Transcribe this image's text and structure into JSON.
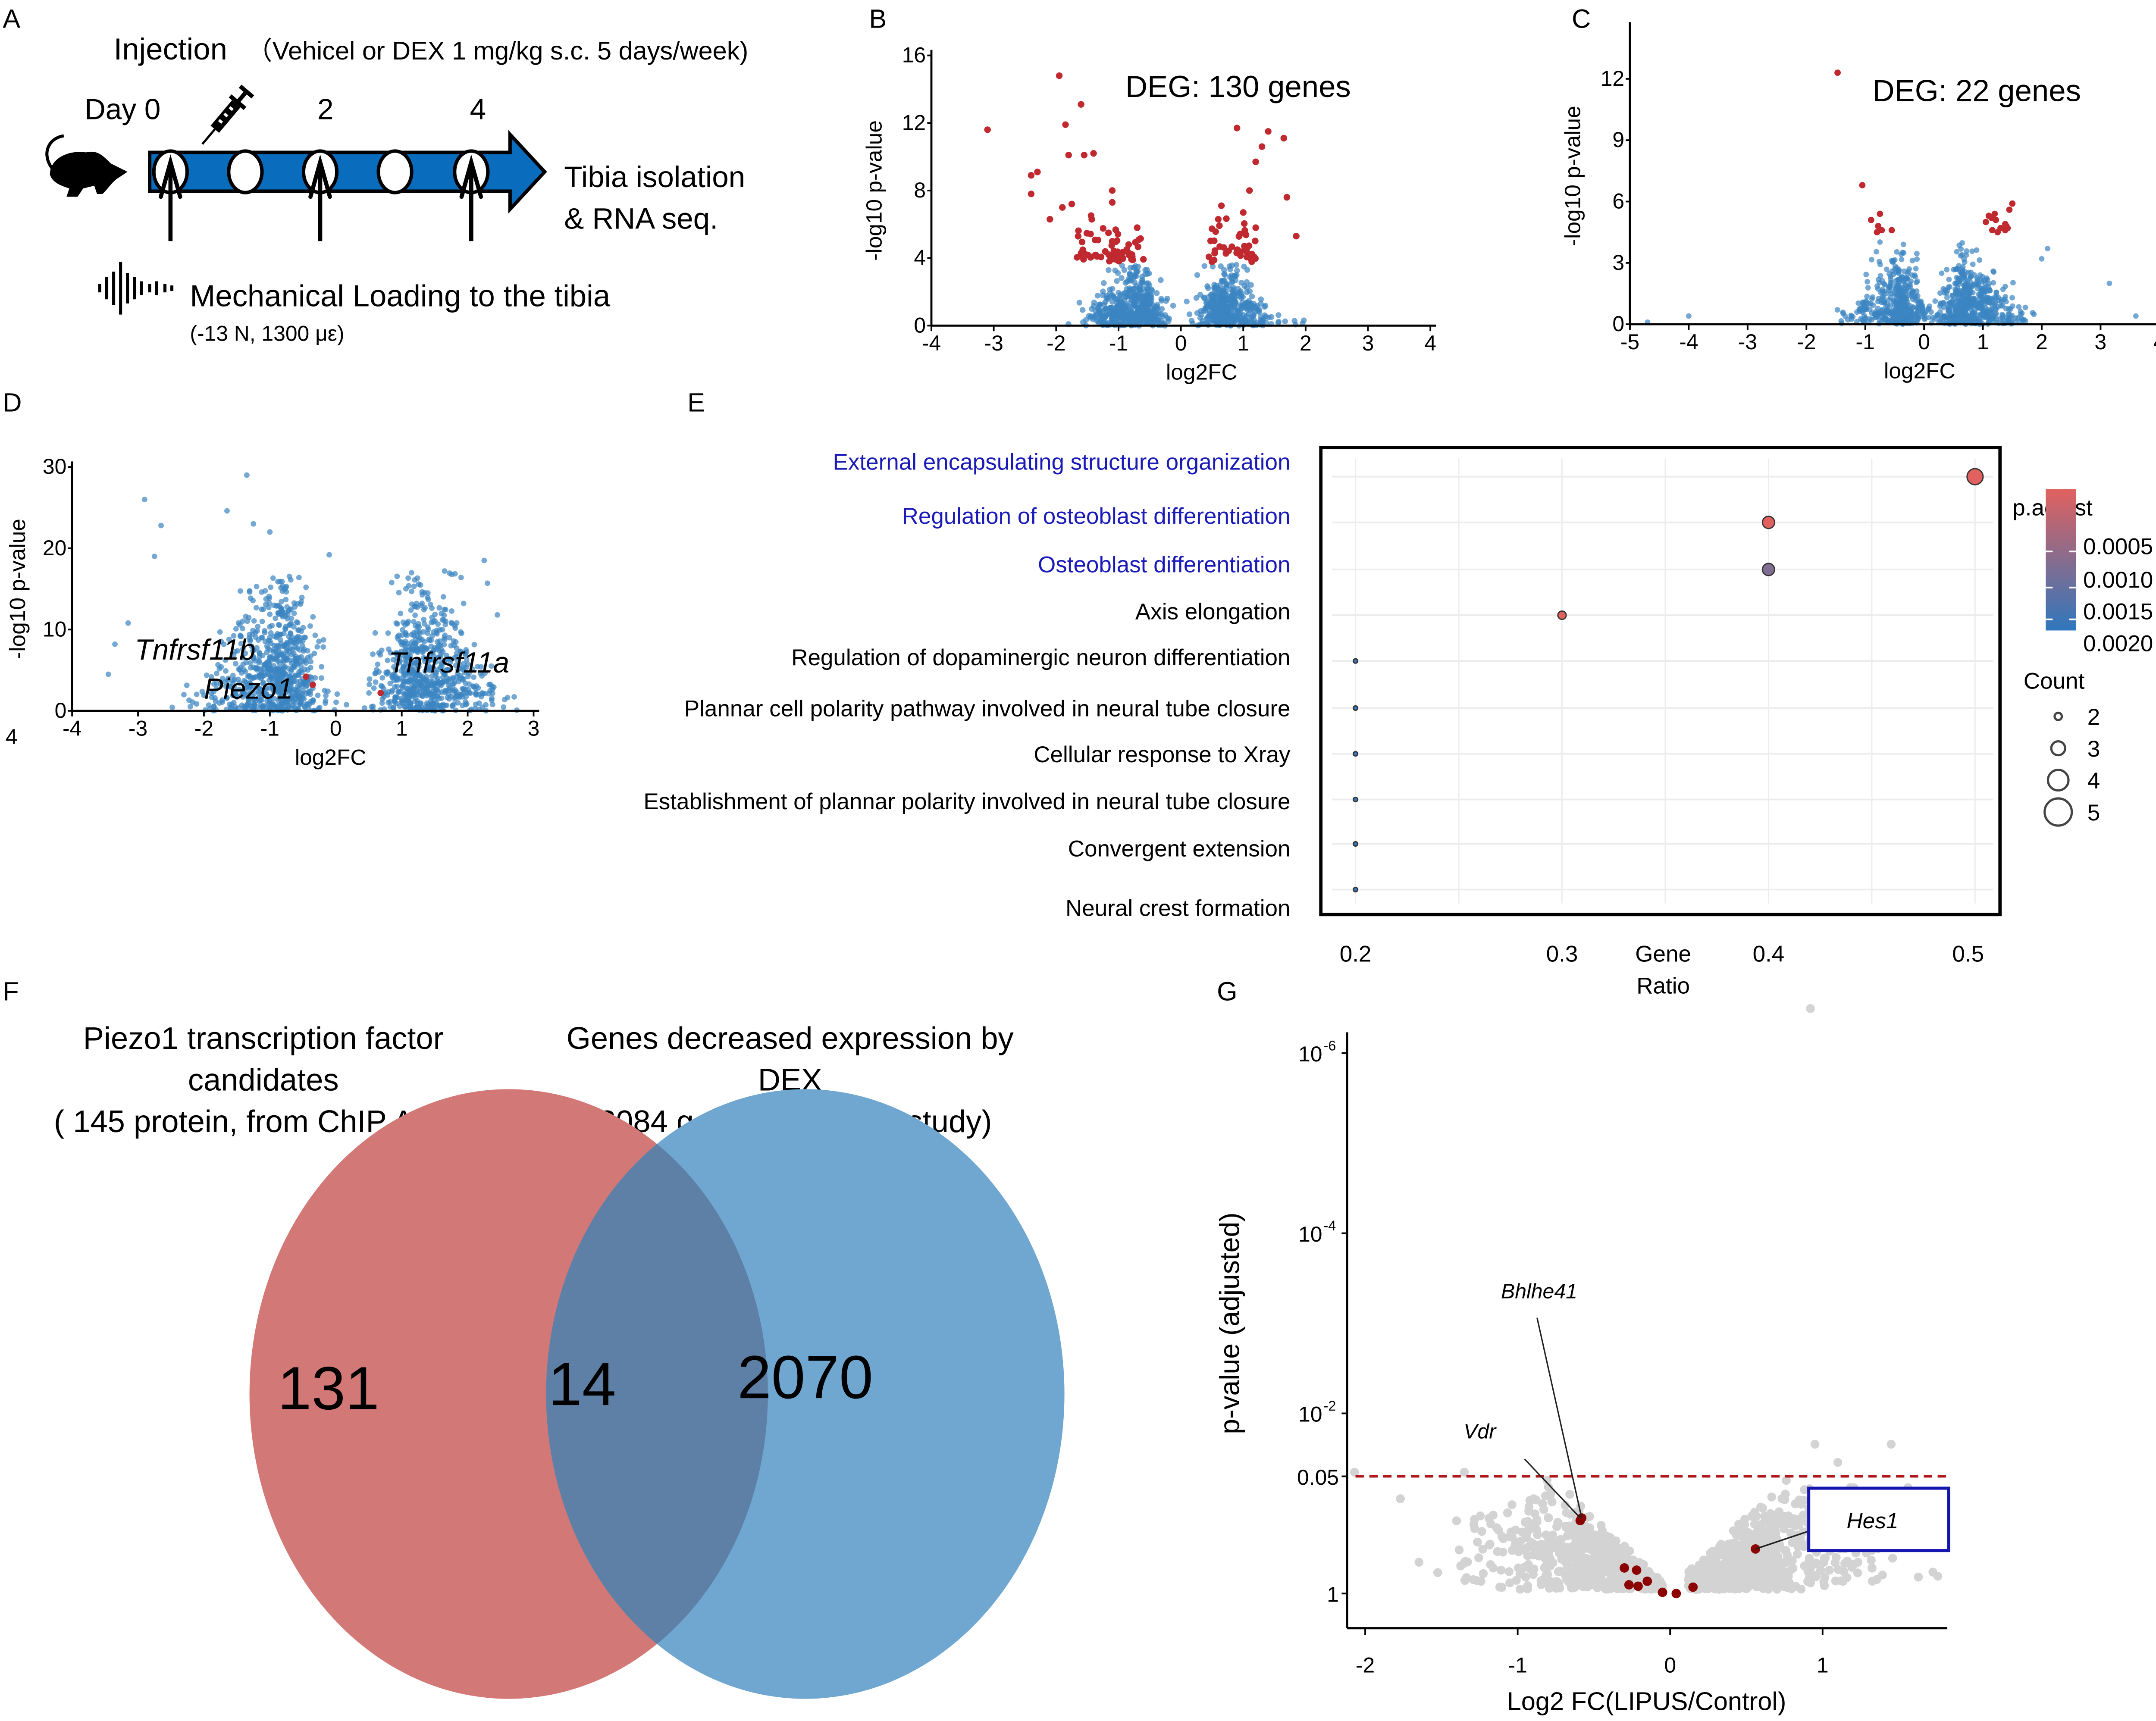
{
  "figure": {
    "panel_labels": [
      "A",
      "B",
      "C",
      "D",
      "E",
      "F",
      "G"
    ]
  },
  "panel_a": {
    "injection_title": "Injection",
    "injection_detail": "（Vehicel or DEX 1 mg/kg s.c. 5 days/week)",
    "day_labels": [
      "Day 0",
      "2",
      "4"
    ],
    "outcome_line1": "Tibia isolation",
    "outcome_line2": "& RNA seq.",
    "loading_title": "Mechanical Loading to the tibia",
    "loading_detail": "(-13 N, 1300 με)",
    "icons": [
      "mouse-icon",
      "syringe-icon",
      "sound-wave-icon"
    ],
    "timeline_color": "#0a6cbd",
    "timepoints": 5,
    "loading_timepoints": [
      0,
      2,
      4
    ]
  },
  "chart_data": [
    {
      "id": "B",
      "type": "scatter",
      "title": "",
      "annotation": "DEG: 130 genes",
      "xlabel": "log2FC",
      "ylabel": "-log10 p-value",
      "xlim": [
        -4,
        4.3
      ],
      "ylim": [
        0,
        16.5
      ],
      "xticks": [
        -4,
        -3,
        -2,
        -1,
        0,
        1,
        2,
        3,
        4
      ],
      "yticks": [
        0,
        4,
        8,
        12,
        16
      ],
      "colors": {
        "significant": "#c0292f",
        "non_significant": "#3a85c2"
      },
      "deg_count": 130,
      "significance_threshold_neglog10p": 3.7,
      "highlighted_points": [
        [
          -3.1,
          11.6
        ],
        [
          -1.95,
          14.8
        ],
        [
          -1.6,
          13.1
        ],
        [
          -1.85,
          11.9
        ],
        [
          -1.8,
          10.1
        ],
        [
          -1.55,
          10.1
        ],
        [
          -1.4,
          10.2
        ],
        [
          -2.4,
          8.9
        ],
        [
          -2.3,
          9.1
        ],
        [
          -2.4,
          7.8
        ],
        [
          -1.1,
          8.0
        ],
        [
          -1.1,
          7.3
        ],
        [
          -1.9,
          7.0
        ],
        [
          -1.75,
          7.2
        ],
        [
          -2.1,
          6.3
        ],
        [
          -0.7,
          5.8
        ],
        [
          0.9,
          11.7
        ],
        [
          1.4,
          11.5
        ],
        [
          1.65,
          11.1
        ],
        [
          1.3,
          10.6
        ],
        [
          1.2,
          9.7
        ],
        [
          1.1,
          8.0
        ],
        [
          1.7,
          7.6
        ],
        [
          0.65,
          7.1
        ],
        [
          1.0,
          6.7
        ],
        [
          0.6,
          6.3
        ],
        [
          1.85,
          5.3
        ],
        [
          1.2,
          5.8
        ]
      ]
    },
    {
      "id": "C",
      "type": "scatter",
      "annotation": "DEG: 22 genes",
      "xlabel": "log2FC",
      "ylabel": "-log10 p-value",
      "xlim": [
        -5,
        4.2
      ],
      "ylim": [
        0,
        14.5
      ],
      "xticks": [
        -5,
        -4,
        -3,
        -2,
        -1,
        0,
        1,
        2,
        3,
        4
      ],
      "yticks": [
        0,
        3,
        6,
        9,
        12
      ],
      "colors": {
        "significant": "#c0292f",
        "non_significant": "#3a85c2"
      },
      "deg_count": 22,
      "highlighted_points": [
        [
          -1.47,
          12.3
        ],
        [
          -1.05,
          6.8
        ],
        [
          -0.9,
          5.1
        ],
        [
          -0.75,
          5.4
        ],
        [
          -0.78,
          4.8
        ],
        [
          -0.72,
          4.6
        ],
        [
          -0.55,
          4.6
        ],
        [
          1.05,
          5.0
        ],
        [
          1.15,
          5.2
        ],
        [
          1.2,
          5.4
        ],
        [
          1.22,
          5.1
        ],
        [
          1.16,
          4.6
        ],
        [
          1.25,
          4.5
        ],
        [
          1.38,
          4.9
        ],
        [
          1.42,
          4.7
        ],
        [
          1.38,
          4.6
        ],
        [
          1.45,
          5.6
        ],
        [
          1.5,
          5.9
        ],
        [
          1.4,
          4.8
        ],
        [
          1.1,
          5.3
        ],
        [
          -0.8,
          4.5
        ],
        [
          1.3,
          4.7
        ]
      ],
      "outlier_points": [
        [
          -4.7,
          0.1
        ],
        [
          -4.0,
          0.4
        ],
        [
          3.15,
          2.0
        ],
        [
          3.6,
          0.4
        ],
        [
          2.1,
          3.7
        ],
        [
          2.0,
          3.2
        ]
      ]
    },
    {
      "id": "D",
      "type": "scatter",
      "xlabel": "log2FC",
      "ylabel": "-log10 p-value",
      "xlim": [
        -4,
        3.3
      ],
      "ylim": [
        0,
        31
      ],
      "xticks": [
        -4,
        -3,
        -2,
        -1,
        0,
        1,
        2,
        3
      ],
      "yticks": [
        0,
        10,
        20,
        30
      ],
      "stray_tick_label": "4",
      "colors": {
        "highlight": "#c0292f",
        "points": "#3a85c2"
      },
      "gene_labels": [
        {
          "text": "Tnfrsf11b",
          "x": -3.05,
          "y": 6.3
        },
        {
          "text": "Piezo1",
          "x": -2.0,
          "y": 1.5
        },
        {
          "text": "Tnfrsf11a",
          "x": 0.8,
          "y": 4.7
        }
      ],
      "highlighted_points": [
        [
          -0.45,
          4.2
        ],
        [
          -0.35,
          3.2
        ],
        [
          0.68,
          2.2
        ]
      ],
      "outlier_points": [
        [
          -1.35,
          29
        ],
        [
          -2.9,
          26
        ],
        [
          -1.65,
          24.6
        ],
        [
          -2.65,
          22.8
        ],
        [
          -1.25,
          23
        ],
        [
          -1.0,
          22
        ],
        [
          -0.1,
          19.2
        ],
        [
          2.25,
          18.5
        ],
        [
          -2.75,
          19
        ],
        [
          1.65,
          17.2
        ],
        [
          1.9,
          16.4
        ],
        [
          2.3,
          15.7
        ],
        [
          2.45,
          11.8
        ],
        [
          -3.15,
          10.8
        ],
        [
          -3.35,
          8.2
        ],
        [
          -3.45,
          4.5
        ]
      ]
    },
    {
      "id": "E",
      "type": "scatter",
      "title": "",
      "xlabel": "Gene Ratio",
      "xlim": [
        0.2,
        0.5
      ],
      "xticks": [
        0.2,
        0.3,
        0.4,
        0.5
      ],
      "categories": [
        "External encapsulating structure organization",
        "Regulation of osteoblast differentiation",
        "Osteoblast differentiation",
        "Axis elongation",
        "Regulation of dopaminergic neuron differentiation",
        "Plannar cell polarity pathway involved in neural tube closure",
        "Cellular response to Xray",
        "Establishment of plannar polarity involved in neural tube closure",
        "Convergent extension",
        "Neural crest formation"
      ],
      "highlighted_categories": [
        0,
        1,
        2
      ],
      "highlight_color": "#1a1ab8",
      "gene_ratio": [
        0.5,
        0.4,
        0.4,
        0.3,
        0.2,
        0.2,
        0.2,
        0.2,
        0.2,
        0.2
      ],
      "count": [
        5,
        4,
        4,
        3,
        2,
        2,
        2,
        2,
        2,
        2
      ],
      "p_adjust": [
        0.0003,
        0.0003,
        0.0014,
        0.0003,
        0.0022,
        0.0022,
        0.0022,
        0.0022,
        0.0022,
        0.0022
      ],
      "legend": {
        "color_title": "p.adjust",
        "color_ticks": [
          "0.0005",
          "0.0010",
          "0.0015",
          "0.0020"
        ],
        "color_range": [
          "#e0615f",
          "#2f77bd"
        ],
        "size_title": "Count",
        "size_ticks": [
          "2",
          "3",
          "4",
          "5"
        ],
        "position": "right"
      }
    },
    {
      "id": "F",
      "type": "venn",
      "sets": [
        {
          "name": "Piezo1 transcription factor candidates",
          "detail": "( 145 protein, from ChIP Atlas)",
          "total": 145,
          "color": "#d27876"
        },
        {
          "name": "Genes decreased expression by DEX",
          "detail": "(2084 genes, from this study)",
          "total": 2084,
          "color": "#6fa7d0"
        }
      ],
      "only_left": 131,
      "intersection": 14,
      "only_right": 2070,
      "intersection_color": "#5e7fa6"
    },
    {
      "id": "G",
      "type": "scatter",
      "xlabel": "Log2 FC(LIPUS/Control)",
      "ylabel": "p-value (adjusted)",
      "xlim": [
        -2.15,
        1.8
      ],
      "y_scale": "log10 (reversed)",
      "yticks": [
        {
          "label": "10",
          "sup": "-6",
          "value": 1e-06
        },
        {
          "label": "10",
          "sup": "-4",
          "value": 0.0001
        },
        {
          "label": "10",
          "sup": "-2",
          "value": 0.01
        },
        {
          "label": "0.05",
          "sup": "",
          "value": 0.05
        },
        {
          "label": "1",
          "sup": "",
          "value": 1
        }
      ],
      "xticks": [
        -2,
        -1,
        0,
        1
      ],
      "threshold": {
        "value": 0.05,
        "color": "#b0181c",
        "style": "dashed"
      },
      "colors": {
        "highlight": "#8b0000",
        "points": "#d3d3d3",
        "box": "#1515b0"
      },
      "gene_labels": [
        {
          "text": "Bhlhe41",
          "boxed": false
        },
        {
          "text": "Vdr",
          "boxed": false
        },
        {
          "text": "Hes1",
          "boxed": true
        }
      ],
      "highlighted_points": [
        {
          "gene": "Bhlhe41",
          "x": -0.58,
          "p": 0.145
        },
        {
          "gene": "Vdr",
          "x": -0.59,
          "p": 0.155
        },
        {
          "gene": "Hes1",
          "x": 0.56,
          "p": 0.32
        },
        {
          "gene": "",
          "x": -0.3,
          "p": 0.52
        },
        {
          "gene": "",
          "x": -0.22,
          "p": 0.55
        },
        {
          "gene": "",
          "x": -0.15,
          "p": 0.73
        },
        {
          "gene": "",
          "x": -0.27,
          "p": 0.8
        },
        {
          "gene": "",
          "x": -0.21,
          "p": 0.83
        },
        {
          "gene": "",
          "x": -0.05,
          "p": 0.97
        },
        {
          "gene": "",
          "x": 0.04,
          "p": 1.0
        },
        {
          "gene": "",
          "x": 0.15,
          "p": 0.85
        }
      ],
      "outlier_points": [
        {
          "x": 0.92,
          "p": 3.2e-07
        },
        {
          "x": -2.07,
          "p": 0.045
        },
        {
          "x": 1.45,
          "p": 0.022
        },
        {
          "x": 0.95,
          "p": 0.022
        },
        {
          "x": 1.1,
          "p": 0.035
        },
        {
          "x": -1.35,
          "p": 0.045
        }
      ]
    }
  ]
}
